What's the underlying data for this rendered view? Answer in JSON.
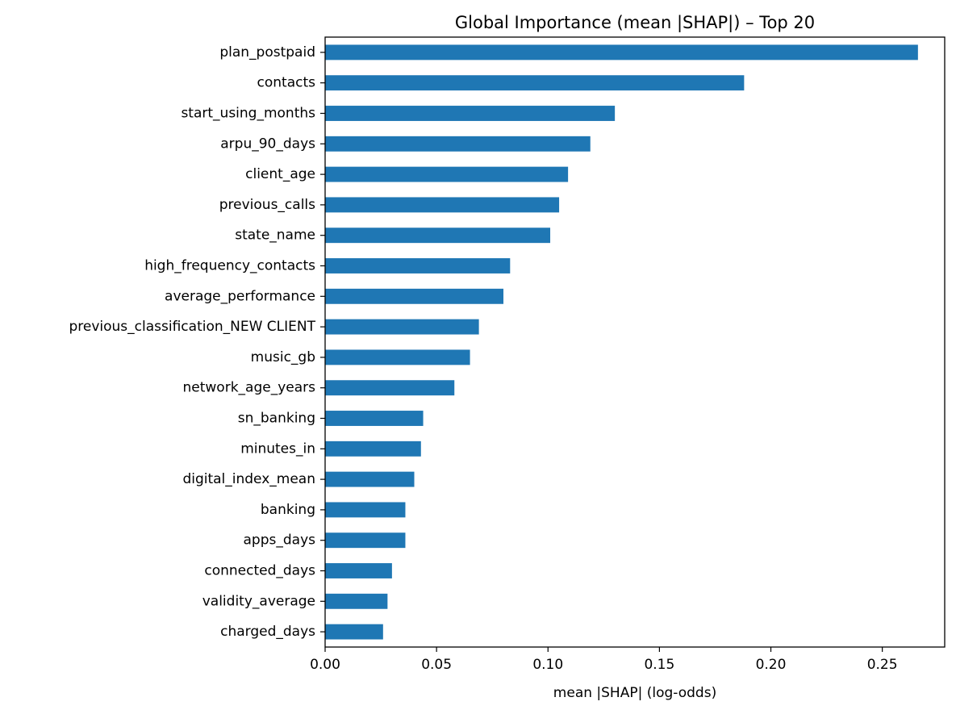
{
  "chart_data": {
    "type": "bar",
    "orientation": "horizontal",
    "title": "Global Importance (mean |SHAP|) – Top 20",
    "xlabel": "mean |SHAP| (log-odds)",
    "ylabel": "",
    "xlim": [
      0,
      0.278
    ],
    "xticks": [
      0.0,
      0.05,
      0.1,
      0.15,
      0.2,
      0.25
    ],
    "xtick_labels": [
      "0.00",
      "0.05",
      "0.10",
      "0.15",
      "0.20",
      "0.25"
    ],
    "grid": false,
    "legend": "none",
    "bar_color": "#1f77b4",
    "categories": [
      "plan_postpaid",
      "contacts",
      "start_using_months",
      "arpu_90_days",
      "client_age",
      "previous_calls",
      "state_name",
      "high_frequency_contacts",
      "average_performance",
      "previous_classification_NEW CLIENT",
      "music_gb",
      "network_age_years",
      "sn_banking",
      "minutes_in",
      "digital_index_mean",
      "banking",
      "apps_days",
      "connected_days",
      "validity_average",
      "charged_days"
    ],
    "values": [
      0.266,
      0.188,
      0.13,
      0.119,
      0.109,
      0.105,
      0.101,
      0.083,
      0.08,
      0.069,
      0.065,
      0.058,
      0.044,
      0.043,
      0.04,
      0.036,
      0.036,
      0.03,
      0.028,
      0.026
    ]
  }
}
